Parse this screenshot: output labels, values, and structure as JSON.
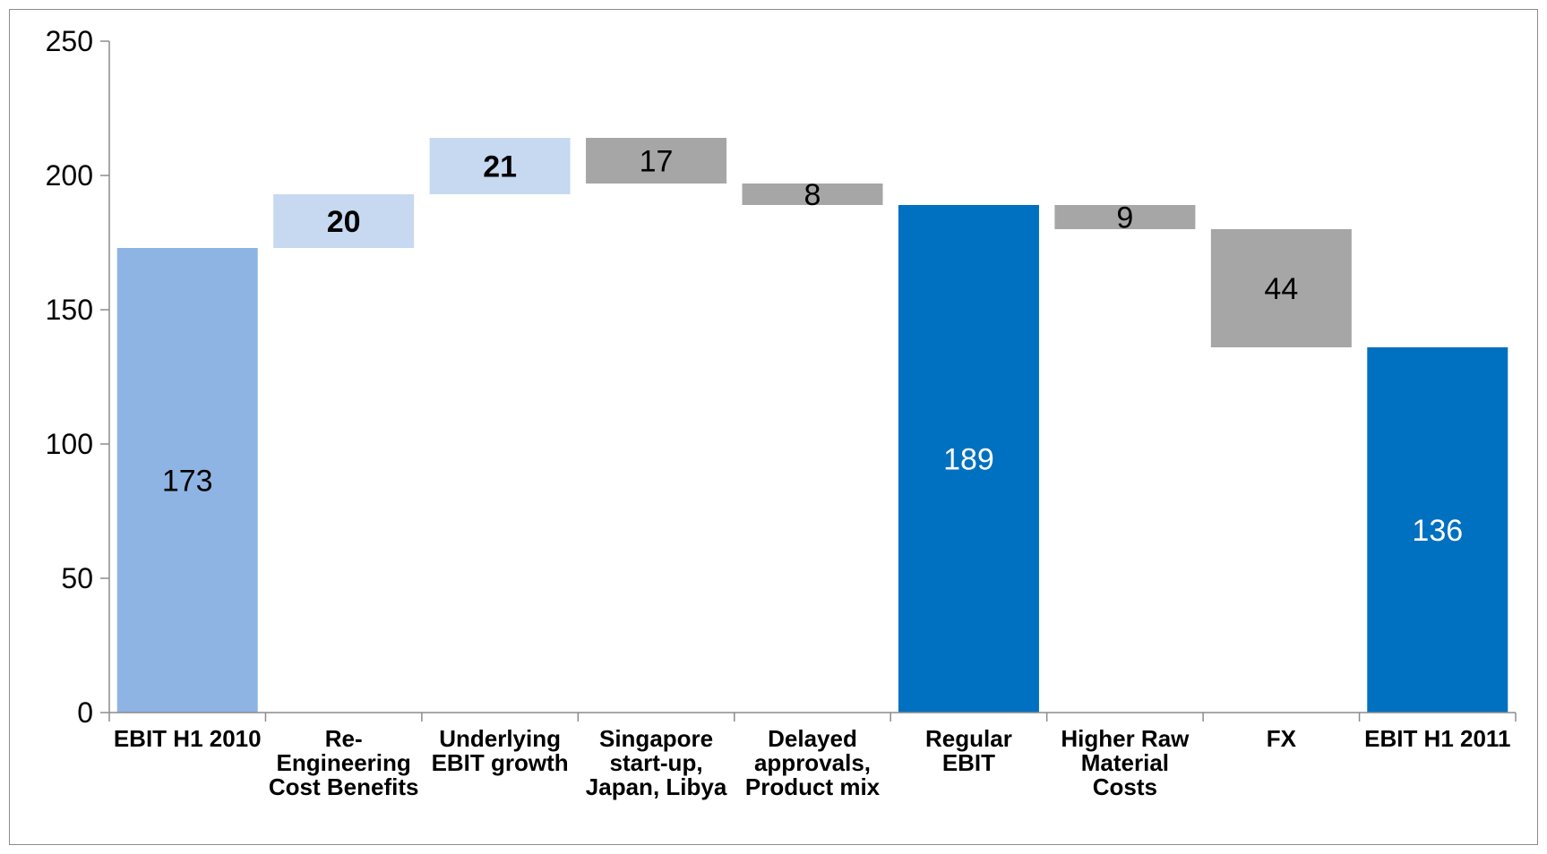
{
  "chart_data": {
    "type": "bar",
    "subtype": "waterfall",
    "title": "",
    "xlabel": "",
    "ylabel": "",
    "ylim": [
      0,
      250
    ],
    "yticks": [
      0,
      50,
      100,
      150,
      200,
      250
    ],
    "grid": false,
    "legend": "none",
    "categories": [
      [
        "EBIT H1 2010"
      ],
      [
        "Re-",
        "Engineering",
        "Cost Benefits"
      ],
      [
        "Underlying",
        "EBIT growth"
      ],
      [
        "Singapore",
        "start-up,",
        "Japan, Libya"
      ],
      [
        "Delayed",
        "approvals,",
        "Product mix"
      ],
      [
        "Regular",
        "EBIT"
      ],
      [
        "Higher Raw",
        "Material",
        "Costs"
      ],
      [
        "FX"
      ],
      [
        "EBIT H1 2011"
      ]
    ],
    "bars": [
      {
        "kind": "total",
        "start": 0,
        "end": 173,
        "label": "173",
        "color": "#8eb4e3",
        "label_color": "#000000",
        "bold": false
      },
      {
        "kind": "increase",
        "start": 173,
        "end": 193,
        "label": "20",
        "color": "#c6d9f1",
        "label_color": "#000000",
        "bold": true
      },
      {
        "kind": "increase",
        "start": 193,
        "end": 214,
        "label": "21",
        "color": "#c6d9f1",
        "label_color": "#000000",
        "bold": true
      },
      {
        "kind": "decrease",
        "start": 214,
        "end": 197,
        "label": "17",
        "color": "#a6a6a6",
        "label_color": "#000000",
        "bold": false
      },
      {
        "kind": "decrease",
        "start": 197,
        "end": 189,
        "label": "8",
        "color": "#a6a6a6",
        "label_color": "#000000",
        "bold": false
      },
      {
        "kind": "total",
        "start": 0,
        "end": 189,
        "label": "189",
        "color": "#0070c0",
        "label_color": "#ffffff",
        "bold": false
      },
      {
        "kind": "decrease",
        "start": 189,
        "end": 180,
        "label": "9",
        "color": "#a6a6a6",
        "label_color": "#000000",
        "bold": false
      },
      {
        "kind": "decrease",
        "start": 180,
        "end": 136,
        "label": "44",
        "color": "#a6a6a6",
        "label_color": "#000000",
        "bold": false
      },
      {
        "kind": "total",
        "start": 0,
        "end": 136,
        "label": "136",
        "color": "#0070c0",
        "label_color": "#ffffff",
        "bold": false
      }
    ]
  }
}
